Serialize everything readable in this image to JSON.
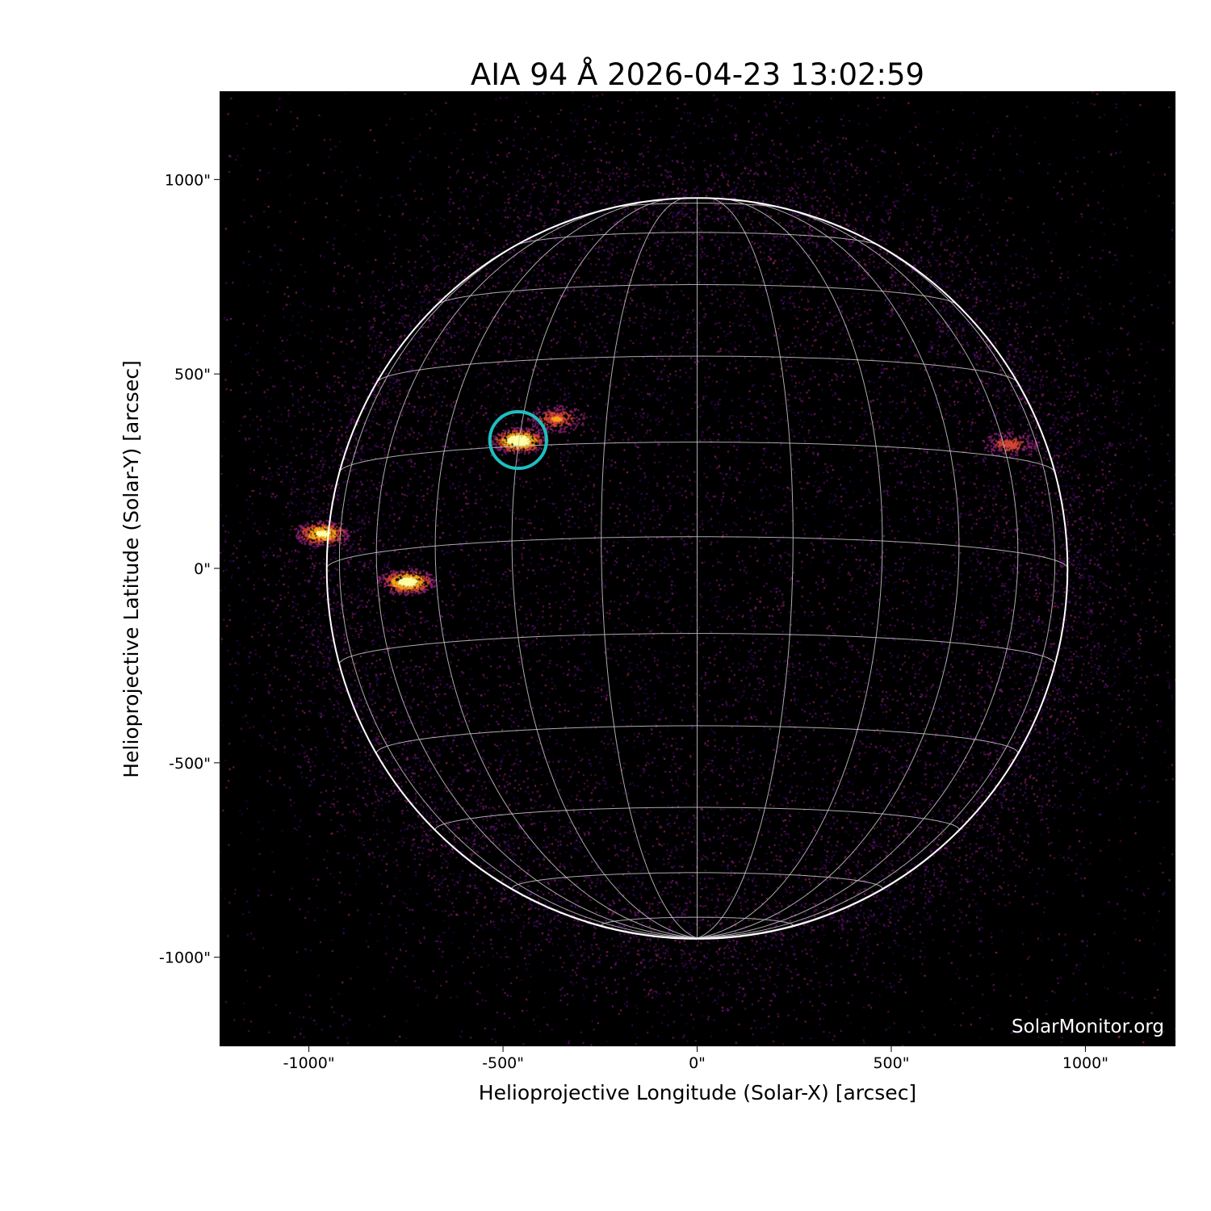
{
  "chart_data": {
    "type": "heatmap",
    "title": "AIA 94 Å 2026-04-23 13:02:59",
    "xlabel": "Helioprojective Longitude (Solar-X) [arcsec]",
    "ylabel": "Helioprojective Latitude (Solar-Y) [arcsec]",
    "xlim": [
      -1230,
      1232
    ],
    "ylim": [
      -1229,
      1227
    ],
    "x_ticks": [
      -1000,
      -500,
      0,
      500,
      1000
    ],
    "x_tick_labels": [
      "-1000\"",
      "-500\"",
      "0\"",
      "500\"",
      "1000\""
    ],
    "y_ticks": [
      1000,
      500,
      0,
      -500,
      -1000
    ],
    "y_tick_labels": [
      "1000\"",
      "500\"",
      "0\"",
      "-500\"",
      "-1000\""
    ],
    "colormap": "inferno-like (black-purple-orange-yellow)",
    "solar_radius_arcsec": 954,
    "b0_deg": -4.9,
    "grid_spacing_deg": 15,
    "grid_color": "#c8c8c8",
    "limb_color": "#ffffff",
    "highlight_circle": {
      "x": -461,
      "y": 330,
      "radius": 73,
      "color": "#1fbfbf"
    },
    "bright_regions": [
      {
        "x": -461,
        "y": 330,
        "intensity": 1.0
      },
      {
        "x": -748,
        "y": -33,
        "intensity": 0.9
      },
      {
        "x": -967,
        "y": 91,
        "intensity": 0.8
      },
      {
        "x": -364,
        "y": 386,
        "intensity": 0.5
      },
      {
        "x": 805,
        "y": 320,
        "intensity": 0.4
      }
    ],
    "watermark": "SolarMonitor.org"
  }
}
